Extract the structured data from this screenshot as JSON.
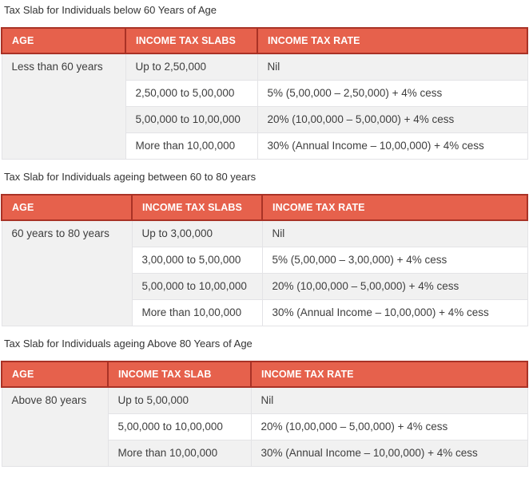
{
  "colors": {
    "header_bg": "#E6614C",
    "header_border": "#A93226",
    "header_text": "#FFFFFF",
    "row_alt_bg": "#F1F1F1",
    "row_bg": "#FFFFFF",
    "cell_border": "#E3E3E6",
    "body_text": "#3E3E3E",
    "title_text": "#333333"
  },
  "sections": [
    {
      "title": "Tax Slab for Individuals below 60 Years of Age",
      "columns": [
        "AGE",
        "INCOME TAX SLABS",
        "INCOME TAX RATE"
      ],
      "age_label": "Less than 60 years",
      "rows": [
        {
          "slab": "Up to 2,50,000",
          "rate": "Nil"
        },
        {
          "slab": "2,50,000 to 5,00,000",
          "rate": "5% (5,00,000 – 2,50,000) + 4% cess"
        },
        {
          "slab": "5,00,000 to 10,00,000",
          "rate": "20% (10,00,000 – 5,00,000) + 4% cess"
        },
        {
          "slab": "More than 10,00,000",
          "rate": "30% (Annual Income – 10,00,000) + 4% cess"
        }
      ]
    },
    {
      "title": "Tax Slab for Individuals ageing between 60 to 80 years",
      "columns": [
        "AGE",
        "INCOME TAX SLABS",
        "INCOME TAX RATE"
      ],
      "age_label": "60 years to 80 years",
      "rows": [
        {
          "slab": "Up to 3,00,000",
          "rate": "Nil"
        },
        {
          "slab": "3,00,000 to 5,00,000",
          "rate": "5% (5,00,000 – 3,00,000) + 4% cess"
        },
        {
          "slab": "5,00,000 to 10,00,000",
          "rate": "20% (10,00,000 – 5,00,000) + 4% cess"
        },
        {
          "slab": "More than 10,00,000",
          "rate": "30% (Annual Income – 10,00,000) + 4% cess"
        }
      ]
    },
    {
      "title": "Tax Slab for Individuals ageing Above 80 Years of Age",
      "columns": [
        "AGE",
        "INCOME TAX SLAB",
        "INCOME TAX RATE"
      ],
      "age_label": "Above 80 years",
      "rows": [
        {
          "slab": "Up to 5,00,000",
          "rate": "Nil"
        },
        {
          "slab": "5,00,000 to 10,00,000",
          "rate": "20% (10,00,000 – 5,00,000) + 4% cess"
        },
        {
          "slab": "More than 10,00,000",
          "rate": "30% (Annual Income – 10,00,000) + 4% cess"
        }
      ]
    }
  ]
}
